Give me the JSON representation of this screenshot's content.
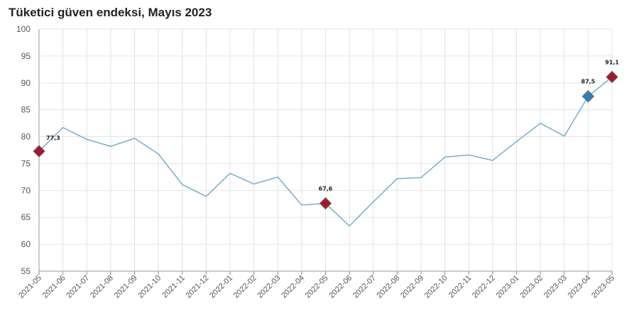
{
  "title": "Tüketici güven endeksi, Mayıs 2023",
  "chart_data": {
    "type": "line",
    "title": "Tüketici güven endeksi, Mayıs 2023",
    "xlabel": "",
    "ylabel": "",
    "ylim": [
      55,
      100
    ],
    "yticks": [
      55,
      60,
      65,
      70,
      75,
      80,
      85,
      90,
      95,
      100
    ],
    "grid": true,
    "line_color": "#6fa8c8",
    "categories": [
      "2021-05",
      "2021-06",
      "2021-07",
      "2021-08",
      "2021-09",
      "2021-10",
      "2021-11",
      "2021-12",
      "2022-01",
      "2022-02",
      "2022-03",
      "2022-04",
      "2022-05",
      "2022-06",
      "2022-07",
      "2022-08",
      "2022-09",
      "2022-10",
      "2022-11",
      "2022-12",
      "2023-01",
      "2023-02",
      "2023-03",
      "2023-04",
      "2023-05"
    ],
    "series": [
      {
        "values": [
          77.3,
          81.7,
          79.5,
          78.2,
          79.7,
          76.8,
          71.1,
          68.9,
          73.2,
          71.2,
          72.5,
          67.3,
          67.6,
          63.4,
          67.9,
          72.2,
          72.4,
          76.2,
          76.6,
          75.6,
          79.1,
          82.5,
          80.1,
          87.5,
          91.1
        ]
      }
    ],
    "highlights": [
      {
        "category": "2021-05",
        "value": 77.3,
        "label": "77,3",
        "color": "#a5182a"
      },
      {
        "category": "2022-05",
        "value": 67.6,
        "label": "67,6",
        "color": "#a5182a"
      },
      {
        "category": "2023-04",
        "value": 87.5,
        "label": "87,5",
        "color": "#2f7fc0"
      },
      {
        "category": "2023-05",
        "value": 91.1,
        "label": "91,1",
        "color": "#a5182a"
      }
    ]
  }
}
